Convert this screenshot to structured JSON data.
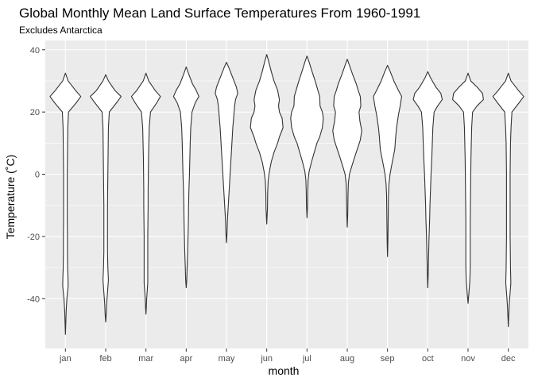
{
  "chart_data": {
    "type": "violin",
    "title": "Global Monthly Mean Land Surface Temperatures From 1960-1991",
    "subtitle": "Excludes Antarctica",
    "xlabel": "month",
    "ylabel": "Temperature (˚C)",
    "ylim": [
      -56,
      43
    ],
    "yticks": [
      -40,
      -20,
      0,
      20,
      40
    ],
    "grid": true,
    "categories": [
      "jan",
      "feb",
      "mar",
      "apr",
      "may",
      "jun",
      "jul",
      "aug",
      "sep",
      "oct",
      "nov",
      "dec"
    ],
    "violins": [
      {
        "month": "jan",
        "min": -51.5,
        "max": 32.5,
        "profile": [
          [
            32.5,
            0
          ],
          [
            30,
            0.15
          ],
          [
            27,
            0.55
          ],
          [
            25,
            0.85
          ],
          [
            23,
            0.6
          ],
          [
            20,
            0.17
          ],
          [
            15,
            0.13
          ],
          [
            10,
            0.12
          ],
          [
            5,
            0.11
          ],
          [
            0,
            0.1
          ],
          [
            -5,
            0.1
          ],
          [
            -10,
            0.1
          ],
          [
            -15,
            0.1
          ],
          [
            -20,
            0.11
          ],
          [
            -25,
            0.11
          ],
          [
            -30,
            0.12
          ],
          [
            -33,
            0.14
          ],
          [
            -36,
            0.15
          ],
          [
            -40,
            0.08
          ],
          [
            -44,
            0.04
          ],
          [
            -48,
            0.02
          ],
          [
            -51.5,
            0
          ]
        ]
      },
      {
        "month": "feb",
        "min": -47.5,
        "max": 32,
        "profile": [
          [
            32,
            0
          ],
          [
            30,
            0.15
          ],
          [
            27,
            0.5
          ],
          [
            25,
            0.85
          ],
          [
            23,
            0.6
          ],
          [
            20,
            0.2
          ],
          [
            15,
            0.15
          ],
          [
            10,
            0.14
          ],
          [
            5,
            0.13
          ],
          [
            0,
            0.12
          ],
          [
            -5,
            0.11
          ],
          [
            -10,
            0.1
          ],
          [
            -15,
            0.1
          ],
          [
            -20,
            0.1
          ],
          [
            -25,
            0.1
          ],
          [
            -30,
            0.12
          ],
          [
            -34,
            0.15
          ],
          [
            -38,
            0.1
          ],
          [
            -42,
            0.05
          ],
          [
            -45,
            0.03
          ],
          [
            -47.5,
            0
          ]
        ]
      },
      {
        "month": "mar",
        "min": -45,
        "max": 32.5,
        "profile": [
          [
            32.5,
            0
          ],
          [
            30,
            0.15
          ],
          [
            27,
            0.5
          ],
          [
            25,
            0.8
          ],
          [
            23,
            0.6
          ],
          [
            20,
            0.25
          ],
          [
            15,
            0.18
          ],
          [
            10,
            0.16
          ],
          [
            5,
            0.14
          ],
          [
            0,
            0.13
          ],
          [
            -5,
            0.12
          ],
          [
            -10,
            0.12
          ],
          [
            -15,
            0.11
          ],
          [
            -20,
            0.1
          ],
          [
            -25,
            0.1
          ],
          [
            -30,
            0.1
          ],
          [
            -35,
            0.1
          ],
          [
            -40,
            0.04
          ],
          [
            -43,
            0.02
          ],
          [
            -45,
            0
          ]
        ]
      },
      {
        "month": "apr",
        "min": -36.5,
        "max": 34.5,
        "profile": [
          [
            34.5,
            0
          ],
          [
            32,
            0.15
          ],
          [
            29,
            0.35
          ],
          [
            27,
            0.55
          ],
          [
            25,
            0.7
          ],
          [
            23,
            0.5
          ],
          [
            20,
            0.32
          ],
          [
            15,
            0.25
          ],
          [
            10,
            0.22
          ],
          [
            5,
            0.2
          ],
          [
            0,
            0.18
          ],
          [
            -5,
            0.15
          ],
          [
            -10,
            0.13
          ],
          [
            -15,
            0.12
          ],
          [
            -20,
            0.1
          ],
          [
            -25,
            0.08
          ],
          [
            -30,
            0.05
          ],
          [
            -34,
            0.03
          ],
          [
            -36.5,
            0
          ]
        ]
      },
      {
        "month": "may",
        "min": -22,
        "max": 36,
        "profile": [
          [
            36,
            0
          ],
          [
            34,
            0.15
          ],
          [
            31,
            0.35
          ],
          [
            28,
            0.55
          ],
          [
            26,
            0.62
          ],
          [
            24,
            0.5
          ],
          [
            22,
            0.45
          ],
          [
            20,
            0.42
          ],
          [
            15,
            0.35
          ],
          [
            10,
            0.3
          ],
          [
            5,
            0.25
          ],
          [
            0,
            0.2
          ],
          [
            -5,
            0.15
          ],
          [
            -10,
            0.1
          ],
          [
            -15,
            0.05
          ],
          [
            -19,
            0.03
          ],
          [
            -22,
            0
          ]
        ]
      },
      {
        "month": "jun",
        "min": -16,
        "max": 38.5,
        "profile": [
          [
            38.5,
            0
          ],
          [
            36,
            0.12
          ],
          [
            33,
            0.25
          ],
          [
            30,
            0.4
          ],
          [
            27,
            0.6
          ],
          [
            24,
            0.7
          ],
          [
            22,
            0.65
          ],
          [
            20,
            0.7
          ],
          [
            18,
            0.85
          ],
          [
            15,
            0.9
          ],
          [
            12,
            0.7
          ],
          [
            10,
            0.6
          ],
          [
            7,
            0.4
          ],
          [
            4,
            0.25
          ],
          [
            1,
            0.15
          ],
          [
            -2,
            0.08
          ],
          [
            -6,
            0.05
          ],
          [
            -11,
            0.04
          ],
          [
            -16,
            0
          ]
        ]
      },
      {
        "month": "jul",
        "min": -14,
        "max": 38,
        "profile": [
          [
            38,
            0
          ],
          [
            36,
            0.12
          ],
          [
            33,
            0.28
          ],
          [
            30,
            0.45
          ],
          [
            27,
            0.6
          ],
          [
            25,
            0.7
          ],
          [
            22,
            0.72
          ],
          [
            20,
            0.85
          ],
          [
            18,
            0.9
          ],
          [
            15,
            0.85
          ],
          [
            12,
            0.7
          ],
          [
            10,
            0.55
          ],
          [
            7,
            0.4
          ],
          [
            4,
            0.25
          ],
          [
            1,
            0.12
          ],
          [
            -2,
            0.06
          ],
          [
            -6,
            0.04
          ],
          [
            -10,
            0.03
          ],
          [
            -14,
            0
          ]
        ]
      },
      {
        "month": "aug",
        "min": -17,
        "max": 37,
        "profile": [
          [
            37,
            0
          ],
          [
            35,
            0.12
          ],
          [
            32,
            0.3
          ],
          [
            29,
            0.5
          ],
          [
            27,
            0.6
          ],
          [
            25,
            0.72
          ],
          [
            22,
            0.75
          ],
          [
            20,
            0.65
          ],
          [
            17,
            0.7
          ],
          [
            14,
            0.8
          ],
          [
            11,
            0.72
          ],
          [
            8,
            0.55
          ],
          [
            5,
            0.38
          ],
          [
            2,
            0.22
          ],
          [
            0,
            0.12
          ],
          [
            -3,
            0.06
          ],
          [
            -7,
            0.04
          ],
          [
            -12,
            0.03
          ],
          [
            -17,
            0
          ]
        ]
      },
      {
        "month": "sep",
        "min": -26.5,
        "max": 35,
        "profile": [
          [
            35,
            0
          ],
          [
            33,
            0.15
          ],
          [
            30,
            0.35
          ],
          [
            27,
            0.6
          ],
          [
            25,
            0.78
          ],
          [
            22,
            0.7
          ],
          [
            19,
            0.6
          ],
          [
            15,
            0.5
          ],
          [
            12,
            0.45
          ],
          [
            8,
            0.4
          ],
          [
            5,
            0.3
          ],
          [
            2,
            0.2
          ],
          [
            0,
            0.14
          ],
          [
            -3,
            0.08
          ],
          [
            -7,
            0.05
          ],
          [
            -12,
            0.04
          ],
          [
            -17,
            0.03
          ],
          [
            -22,
            0.02
          ],
          [
            -26.5,
            0
          ]
        ]
      },
      {
        "month": "oct",
        "min": -36.5,
        "max": 33,
        "profile": [
          [
            33,
            0
          ],
          [
            31,
            0.15
          ],
          [
            28,
            0.45
          ],
          [
            26,
            0.72
          ],
          [
            24,
            0.8
          ],
          [
            22,
            0.55
          ],
          [
            20,
            0.35
          ],
          [
            15,
            0.28
          ],
          [
            10,
            0.25
          ],
          [
            5,
            0.22
          ],
          [
            0,
            0.18
          ],
          [
            -5,
            0.15
          ],
          [
            -10,
            0.12
          ],
          [
            -15,
            0.1
          ],
          [
            -20,
            0.07
          ],
          [
            -25,
            0.05
          ],
          [
            -30,
            0.03
          ],
          [
            -33,
            0.02
          ],
          [
            -36.5,
            0
          ]
        ]
      },
      {
        "month": "nov",
        "min": -41.5,
        "max": 32.5,
        "profile": [
          [
            32.5,
            0
          ],
          [
            30,
            0.15
          ],
          [
            28,
            0.5
          ],
          [
            26,
            0.8
          ],
          [
            24,
            0.85
          ],
          [
            22,
            0.5
          ],
          [
            20,
            0.25
          ],
          [
            15,
            0.2
          ],
          [
            10,
            0.18
          ],
          [
            5,
            0.16
          ],
          [
            0,
            0.15
          ],
          [
            -5,
            0.14
          ],
          [
            -10,
            0.13
          ],
          [
            -15,
            0.12
          ],
          [
            -20,
            0.12
          ],
          [
            -25,
            0.12
          ],
          [
            -30,
            0.12
          ],
          [
            -34,
            0.1
          ],
          [
            -38,
            0.05
          ],
          [
            -41.5,
            0
          ]
        ]
      },
      {
        "month": "dec",
        "min": -49,
        "max": 32.5,
        "profile": [
          [
            32.5,
            0
          ],
          [
            30,
            0.15
          ],
          [
            27,
            0.55
          ],
          [
            25,
            0.85
          ],
          [
            23,
            0.6
          ],
          [
            20,
            0.2
          ],
          [
            15,
            0.15
          ],
          [
            10,
            0.12
          ],
          [
            5,
            0.11
          ],
          [
            0,
            0.1
          ],
          [
            -5,
            0.1
          ],
          [
            -10,
            0.1
          ],
          [
            -15,
            0.1
          ],
          [
            -20,
            0.1
          ],
          [
            -25,
            0.11
          ],
          [
            -30,
            0.12
          ],
          [
            -35,
            0.14
          ],
          [
            -38,
            0.1
          ],
          [
            -42,
            0.05
          ],
          [
            -46,
            0.02
          ],
          [
            -49,
            0
          ]
        ]
      }
    ]
  },
  "colors": {
    "panel_bg": "#ebebeb",
    "grid_major": "#ffffff",
    "violin_fill": "#ffffff",
    "violin_stroke": "#333333"
  }
}
